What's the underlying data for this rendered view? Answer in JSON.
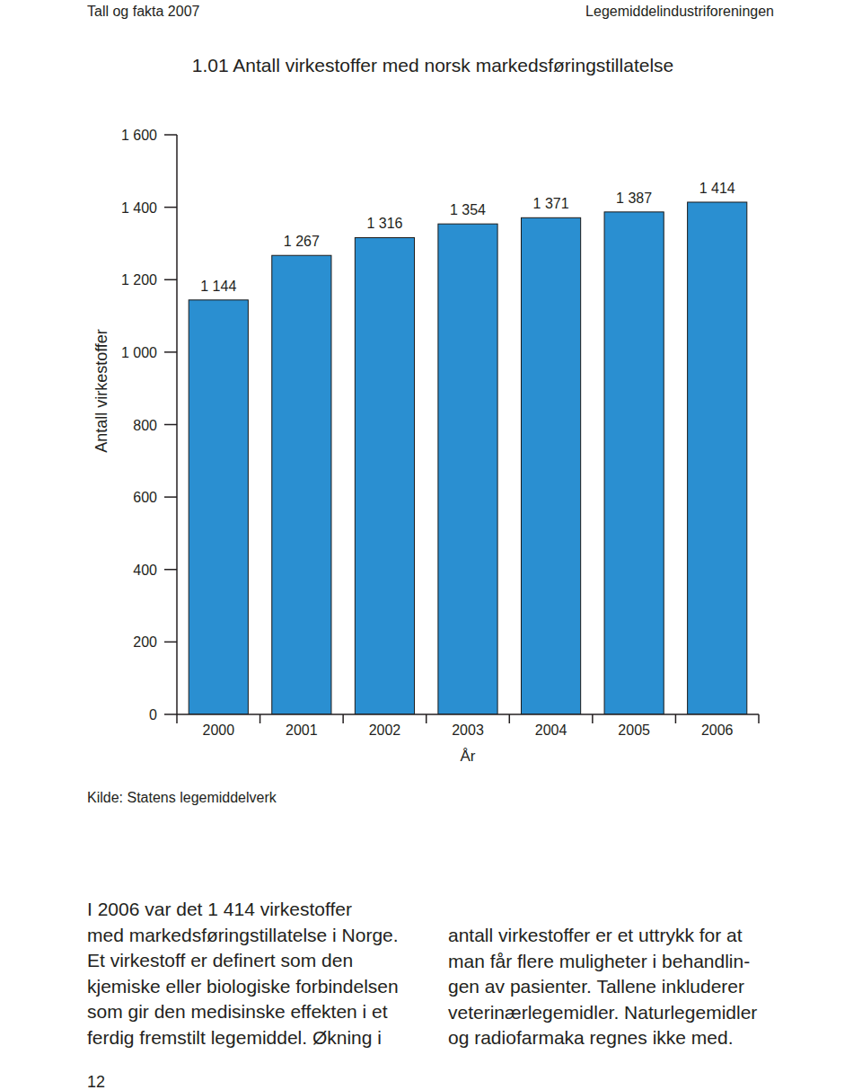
{
  "chart_data": {
    "type": "bar",
    "title": "1.01 Antall virkestoffer med norsk markedsføringstillatelse",
    "x_label": "År",
    "y_label": "Antall virkestoffer",
    "categories": [
      "2000",
      "2001",
      "2002",
      "2003",
      "2004",
      "2005",
      "2006"
    ],
    "values": [
      1144,
      1267,
      1316,
      1354,
      1371,
      1387,
      1414
    ],
    "value_labels": [
      "1 144",
      "1 267",
      "1 316",
      "1 354",
      "1 371",
      "1 387",
      "1 414"
    ],
    "data_labels": true,
    "color": "#2a8fd1",
    "ylim": [
      0,
      1600
    ],
    "yticks": [
      0,
      200,
      400,
      600,
      800,
      {
        "value": 1000,
        "label": "1 000"
      },
      {
        "value": 1200,
        "label": "1 200"
      },
      {
        "value": 1400,
        "label": "1 400"
      },
      {
        "value": 1600,
        "label": "1 600"
      }
    ],
    "grid": false
  },
  "page": {
    "header_left": "Tall og fakta 2007",
    "header_right": "Legemiddelindustriforeningen",
    "source": "Kilde: Statens legemiddelverk",
    "body_left": [
      "I 2006 var det 1 414 virkestoffer",
      "med markedsføringstillatelse i Norge.",
      "Et virkestoff er definert som den",
      "kjemiske eller biologiske forbindelsen",
      "som gir den medisinske effekten i et",
      "ferdig fremstilt legemiddel. Økning i"
    ],
    "body_right": [
      "antall virkestoffer er et uttrykk for at",
      "man får flere muligheter i behandlin-",
      "gen av pasienter. Tallene inkluderer",
      "veterinærlegemidler. Naturlegemidler",
      "og radiofarmaka regnes ikke med."
    ],
    "page_number": "12"
  }
}
